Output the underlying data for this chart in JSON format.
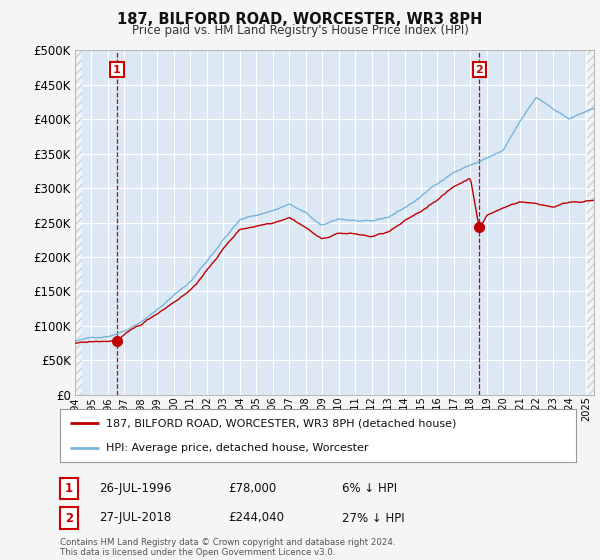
{
  "title": "187, BILFORD ROAD, WORCESTER, WR3 8PH",
  "subtitle": "Price paid vs. HM Land Registry's House Price Index (HPI)",
  "ylim": [
    0,
    500000
  ],
  "yticks": [
    0,
    50000,
    100000,
    150000,
    200000,
    250000,
    300000,
    350000,
    400000,
    450000,
    500000
  ],
  "ytick_labels": [
    "£0",
    "£50K",
    "£100K",
    "£150K",
    "£200K",
    "£250K",
    "£300K",
    "£350K",
    "£400K",
    "£450K",
    "£500K"
  ],
  "xlim_start": 1994.0,
  "xlim_end": 2025.5,
  "plot_bg_color": "#dce9f5",
  "outer_bg_color": "#f5f5f5",
  "grid_color": "#ffffff",
  "hpi_color": "#7ab3d9",
  "price_color": "#c00000",
  "transaction1_x": 1996.55,
  "transaction1_y": 78000,
  "transaction2_x": 2018.55,
  "transaction2_y": 244040,
  "legend_label_price": "187, BILFORD ROAD, WORCESTER, WR3 8PH (detached house)",
  "legend_label_hpi": "HPI: Average price, detached house, Worcester",
  "note1_date": "26-JUL-1996",
  "note1_price": "£78,000",
  "note1_pct": "6% ↓ HPI",
  "note2_date": "27-JUL-2018",
  "note2_price": "£244,040",
  "note2_pct": "27% ↓ HPI",
  "copyright": "Contains HM Land Registry data © Crown copyright and database right 2024.\nThis data is licensed under the Open Government Licence v3.0.",
  "vline_color": "#cc0000",
  "ann_box_color": "#cc0000",
  "box1_label": "1",
  "box2_label": "2"
}
